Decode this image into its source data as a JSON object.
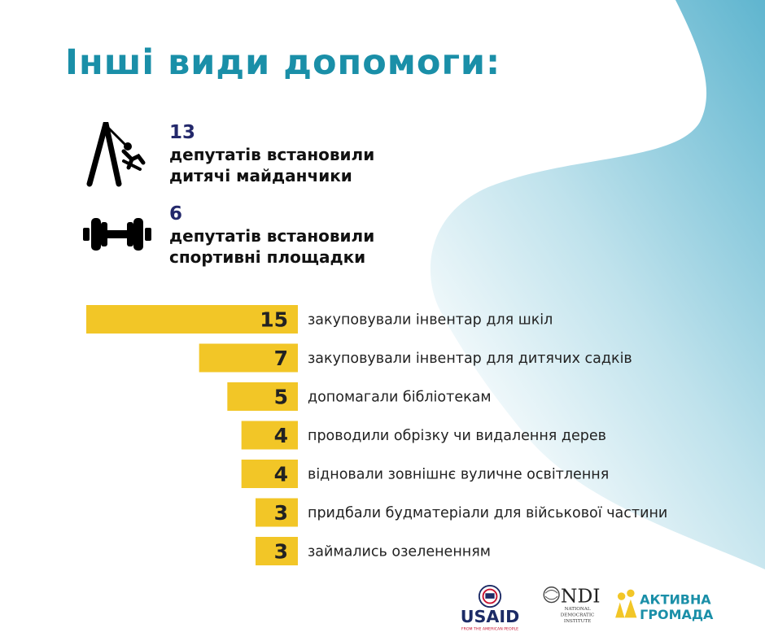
{
  "title": "Інші види допомоги:",
  "stats": [
    {
      "number": "13",
      "line1": "депутатів встановили",
      "line2": "дитячі майданчики",
      "icon": "swing-icon"
    },
    {
      "number": "6",
      "line1": "депутатів встановили",
      "line2": "спортивні площадки",
      "icon": "dumbbell-icon"
    }
  ],
  "chart_data": {
    "type": "bar",
    "orientation": "horizontal",
    "categories": [
      "закуповували інвентар для шкіл",
      "закуповували інвентар для дитячих садків",
      "допомагали бібліотекам",
      "проводили обрізку чи видалення дерев",
      "відновали зовнішнє вуличне освітлення",
      "придбали будматеріали для військової частини",
      "займались озелененням"
    ],
    "values": [
      15,
      7,
      5,
      4,
      4,
      3,
      3
    ],
    "bar_color": "#f2c627",
    "title": "",
    "xlabel": "",
    "ylabel": ""
  },
  "logos": {
    "usaid": {
      "name": "USAID",
      "tagline": "FROM THE AMERICAN PEOPLE"
    },
    "ndi": {
      "name": "NDI",
      "line1": "NATIONAL",
      "line2": "DEMOCRATIC",
      "line3": "INSTITUTE"
    },
    "aktyvna": {
      "line1": "АКТИВНА",
      "line2": "ГРОМАДА"
    }
  },
  "colors": {
    "title": "#1a8fa8",
    "number": "#23286b",
    "bar": "#f2c627",
    "background_shape": "#6fbdd3"
  }
}
